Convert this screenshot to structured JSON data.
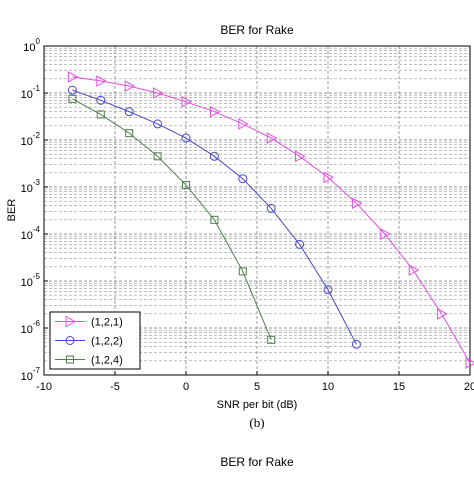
{
  "chart_data": {
    "type": "line",
    "title": "BER for Rake",
    "xlabel": "SNR per bit (dB)",
    "ylabel": "BER",
    "x": [
      -8,
      -6,
      -4,
      -2,
      0,
      2,
      4,
      6,
      8,
      10,
      12,
      14,
      16,
      18,
      20
    ],
    "series": [
      {
        "name": "(1,2,1)",
        "color": "#e050e0",
        "marker": "triangle-right",
        "values": [
          0.22,
          0.18,
          0.14,
          0.1,
          0.065,
          0.04,
          0.022,
          0.011,
          0.0045,
          0.0016,
          0.00045,
          0.0001,
          1.7e-05,
          2e-06,
          1.8e-07
        ]
      },
      {
        "name": "(1,2,2)",
        "color": "#4848c8",
        "marker": "circle",
        "values": [
          0.115,
          0.07,
          0.04,
          0.022,
          0.011,
          0.0045,
          0.0015,
          0.00035,
          6e-05,
          6.5e-06,
          4.5e-07,
          null,
          null,
          null,
          null
        ]
      },
      {
        "name": "(1,2,4)",
        "color": "#4e7e4e",
        "marker": "square",
        "values": [
          0.075,
          0.035,
          0.014,
          0.0045,
          0.0011,
          0.0002,
          1.6e-05,
          5.6e-07,
          null,
          null,
          null,
          null,
          null,
          null,
          null
        ]
      }
    ],
    "xlim": [
      -10,
      20
    ],
    "xticks": [
      -10,
      -5,
      0,
      5,
      10,
      15,
      20
    ],
    "ylim": [
      1e-07,
      1
    ],
    "log_y": true,
    "yticks": [
      {
        "value": 1,
        "label": "10^0"
      },
      {
        "value": 0.1,
        "label": "10^-1"
      },
      {
        "value": 0.01,
        "label": "10^-2"
      },
      {
        "value": 0.001,
        "label": "10^-3"
      },
      {
        "value": 0.0001,
        "label": "10^-4"
      },
      {
        "value": 1e-05,
        "label": "10^-5"
      },
      {
        "value": 1e-06,
        "label": "10^-6"
      },
      {
        "value": 1e-07,
        "label": "10^-7"
      }
    ],
    "grid": true,
    "legend": "lower left"
  },
  "caption": "(b)",
  "next_title": "BER for Rake"
}
